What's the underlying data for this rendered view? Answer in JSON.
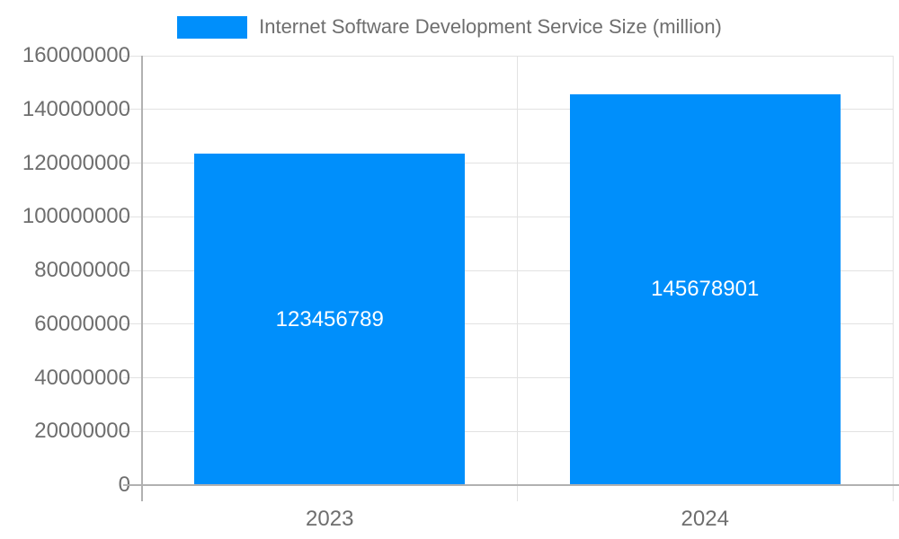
{
  "chart_data": {
    "type": "bar",
    "title": "",
    "xlabel": "",
    "ylabel": "",
    "legend_position": "top",
    "categories": [
      "2023",
      "2024"
    ],
    "series": [
      {
        "name": "Internet Software Development Service Size (million)",
        "values": [
          123456789,
          145678901
        ]
      }
    ],
    "data_labels": [
      "123456789",
      "145678901"
    ],
    "ylim": [
      0,
      160000000
    ],
    "yticks": [
      0,
      20000000,
      40000000,
      60000000,
      80000000,
      100000000,
      120000000,
      140000000,
      160000000
    ],
    "ytick_labels": [
      "0",
      "20000000",
      "40000000",
      "60000000",
      "80000000",
      "100000000",
      "120000000",
      "140000000",
      "160000000"
    ],
    "grid": true,
    "colors": {
      "bar": "#008FFB",
      "gridline": "#e2e2e2",
      "axis": "#b1b1b1",
      "label_text": "#6e6e6e",
      "data_label_text": "#ffffff",
      "background": "#ffffff"
    }
  }
}
